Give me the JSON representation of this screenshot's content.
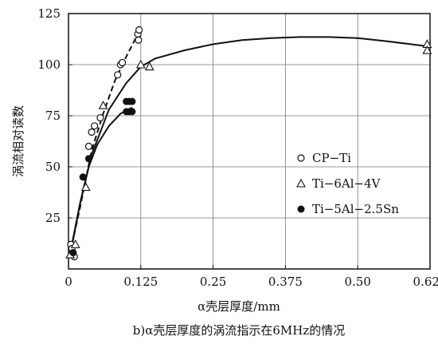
{
  "chart_data": {
    "type": "scatter",
    "xlabel": "α壳层厚度/mm",
    "ylabel": "涡流相对读数",
    "caption": "b)α壳层厚度的涡流指示在6MHz的情况",
    "xlim": [
      0,
      0.625
    ],
    "ylim": [
      0,
      125
    ],
    "xticks": [
      0,
      0.125,
      0.25,
      0.375,
      0.5,
      0.625
    ],
    "xtick_labels": [
      "0",
      "0.125",
      "0.25",
      "0.375",
      "0.50",
      "0.625"
    ],
    "yticks": [
      25,
      50,
      75,
      100,
      125
    ],
    "ytick_labels": [
      "25",
      "50",
      "75",
      "100",
      "125"
    ],
    "grid": true,
    "legend_position": "right-middle",
    "series": [
      {
        "name": "CP−Ti",
        "marker": "open-circle",
        "points": [
          [
            0.004,
            12
          ],
          [
            0.006,
            10
          ],
          [
            0.008,
            7
          ],
          [
            0.01,
            6
          ],
          [
            0.035,
            60
          ],
          [
            0.04,
            67
          ],
          [
            0.045,
            70
          ],
          [
            0.055,
            74
          ],
          [
            0.085,
            95
          ],
          [
            0.09,
            100
          ],
          [
            0.093,
            101
          ],
          [
            0.12,
            115
          ],
          [
            0.121,
            112
          ],
          [
            0.122,
            117
          ]
        ]
      },
      {
        "name": "Ti−6Al−4V",
        "marker": "open-triangle",
        "points": [
          [
            0.003,
            7
          ],
          [
            0.012,
            12
          ],
          [
            0.03,
            40
          ],
          [
            0.06,
            80
          ],
          [
            0.125,
            100
          ],
          [
            0.14,
            99
          ],
          [
            0.62,
            110
          ],
          [
            0.62,
            107
          ]
        ]
      },
      {
        "name": "Ti−5Al−2.5Sn",
        "marker": "filled-circle",
        "points": [
          [
            0.008,
            8
          ],
          [
            0.025,
            45
          ],
          [
            0.035,
            54
          ],
          [
            0.1,
            82
          ],
          [
            0.105,
            82
          ],
          [
            0.11,
            82
          ],
          [
            0.1,
            77
          ],
          [
            0.105,
            77
          ],
          [
            0.11,
            77
          ]
        ]
      }
    ],
    "curves": [
      {
        "series": "CP−Ti",
        "style": "dashed",
        "points": [
          [
            0.003,
            8
          ],
          [
            0.02,
            30
          ],
          [
            0.04,
            58
          ],
          [
            0.06,
            76
          ],
          [
            0.08,
            92
          ],
          [
            0.1,
            104
          ],
          [
            0.12,
            115
          ]
        ]
      },
      {
        "series": "Ti−6Al−4V",
        "style": "solid",
        "points": [
          [
            0.003,
            8
          ],
          [
            0.02,
            32
          ],
          [
            0.04,
            56
          ],
          [
            0.07,
            78
          ],
          [
            0.1,
            91
          ],
          [
            0.125,
            99
          ],
          [
            0.15,
            103
          ],
          [
            0.2,
            107
          ],
          [
            0.25,
            110
          ],
          [
            0.3,
            112
          ],
          [
            0.35,
            113
          ],
          [
            0.4,
            113.5
          ],
          [
            0.45,
            113.5
          ],
          [
            0.5,
            113
          ],
          [
            0.55,
            111.5
          ],
          [
            0.62,
            109
          ]
        ]
      },
      {
        "series": "Ti−5Al−2.5Sn",
        "style": "solid",
        "points": [
          [
            0.003,
            7
          ],
          [
            0.02,
            32
          ],
          [
            0.035,
            50
          ],
          [
            0.05,
            61
          ],
          [
            0.07,
            70
          ],
          [
            0.09,
            76
          ],
          [
            0.11,
            79
          ]
        ]
      }
    ]
  }
}
